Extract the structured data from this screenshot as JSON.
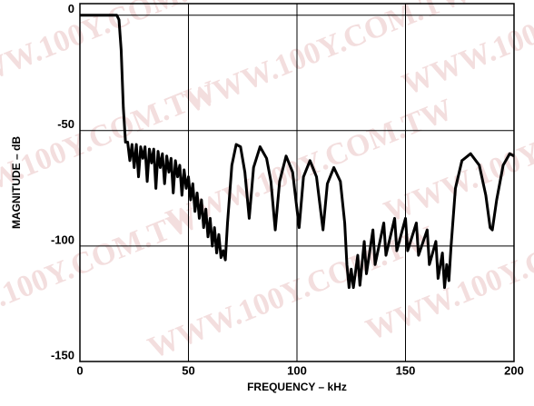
{
  "chart_data": {
    "type": "line",
    "watermark": "WWW.100Y.COM.TW",
    "xlabel": "FREQUENCY – kHz",
    "ylabel": "MAGNITUDE – dB",
    "xlim": [
      0,
      200
    ],
    "xticks": [
      0,
      50,
      100,
      150,
      200
    ],
    "ylim": [
      -150,
      5
    ],
    "yticks": [
      -150,
      -100,
      -50,
      0
    ],
    "grid": true,
    "x": [
      0,
      17,
      18,
      19,
      20,
      21,
      22,
      23,
      24,
      25,
      26,
      27,
      28,
      29,
      30,
      31,
      32,
      33,
      34,
      35,
      36,
      37,
      38,
      39,
      40,
      41,
      42,
      43,
      44,
      45,
      46,
      47,
      48,
      49,
      50,
      51,
      52,
      53,
      54,
      55,
      56,
      57,
      58,
      59,
      60,
      61,
      62,
      63,
      64,
      65,
      66,
      67,
      68,
      70,
      72,
      74,
      76,
      78,
      80,
      83,
      86,
      88,
      90,
      92,
      95,
      98,
      101,
      103,
      106,
      109,
      112,
      114,
      117,
      120,
      122,
      123,
      124,
      125,
      126,
      128,
      129,
      131,
      132,
      135,
      136,
      140,
      141,
      145,
      146,
      150,
      151,
      155,
      156,
      160,
      161,
      164,
      165,
      167,
      168,
      169,
      170,
      171,
      173,
      176,
      180,
      184,
      187,
      189,
      190,
      192,
      195,
      198,
      200
    ],
    "series": [
      {
        "color": "#000000",
        "values": [
          0,
          0,
          -2,
          -15,
          -40,
          -55,
          -55,
          -63,
          -56,
          -66,
          -56,
          -70,
          -57,
          -62,
          -57,
          -72,
          -58,
          -64,
          -58,
          -75,
          -59,
          -66,
          -60,
          -73,
          -61,
          -68,
          -62,
          -77,
          -63,
          -70,
          -65,
          -78,
          -67,
          -75,
          -70,
          -80,
          -73,
          -85,
          -77,
          -88,
          -80,
          -92,
          -84,
          -96,
          -88,
          -100,
          -92,
          -103,
          -95,
          -105,
          -102,
          -106,
          -90,
          -65,
          -56,
          -57,
          -68,
          -88,
          -66,
          -57,
          -62,
          -72,
          -93,
          -72,
          -61,
          -68,
          -92,
          -70,
          -63,
          -70,
          -93,
          -73,
          -66,
          -72,
          -90,
          -108,
          -118,
          -110,
          -118,
          -104,
          -117,
          -98,
          -112,
          -93,
          -108,
          -90,
          -104,
          -88,
          -102,
          -88,
          -102,
          -90,
          -104,
          -93,
          -108,
          -98,
          -114,
          -103,
          -118,
          -108,
          -115,
          -100,
          -75,
          -63,
          -60,
          -65,
          -78,
          -92,
          -93,
          -80,
          -65,
          -60,
          -61
        ]
      }
    ]
  }
}
